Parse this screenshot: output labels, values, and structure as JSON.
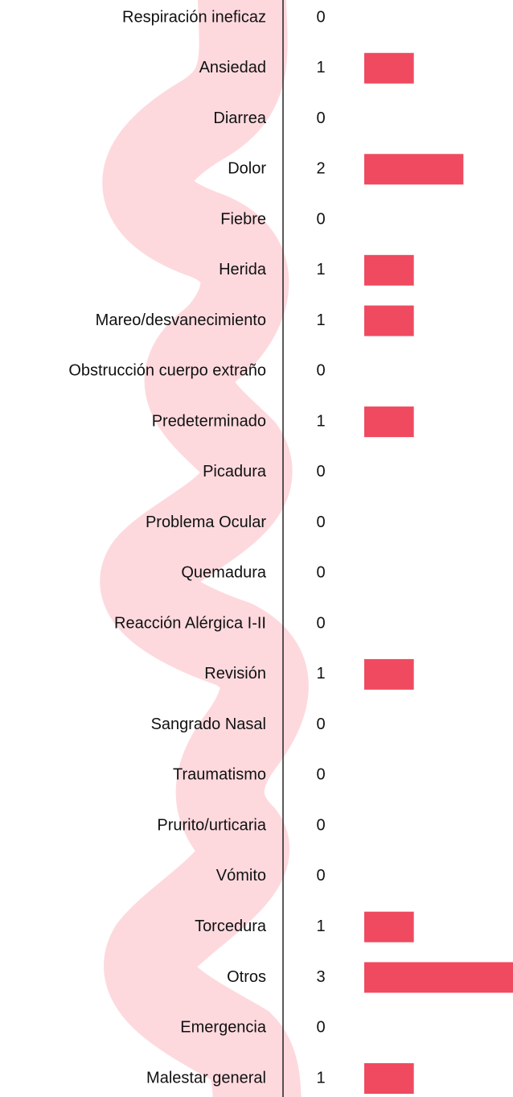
{
  "chart_data": {
    "type": "hbar",
    "categories": [
      "Respiración ineficaz",
      "Ansiedad",
      "Diarrea",
      "Dolor",
      "Fiebre",
      "Herida",
      "Mareo/desvanecimiento",
      "Obstrucción cuerpo extraño",
      "Predeterminado",
      "Picadura",
      "Problema Ocular",
      "Quemadura",
      "Reacción Alérgica I-II",
      "Revisión",
      "Sangrado Nasal",
      "Traumatismo",
      "Prurito/urticaria",
      "Vómito",
      "Torcedura",
      "Otros",
      "Emergencia",
      "Malestar general"
    ],
    "values": [
      0,
      1,
      0,
      2,
      0,
      1,
      1,
      0,
      1,
      0,
      0,
      0,
      0,
      1,
      0,
      0,
      0,
      0,
      1,
      3,
      0,
      1
    ],
    "color": "#ef4a60",
    "xlim": [
      0,
      3
    ]
  }
}
